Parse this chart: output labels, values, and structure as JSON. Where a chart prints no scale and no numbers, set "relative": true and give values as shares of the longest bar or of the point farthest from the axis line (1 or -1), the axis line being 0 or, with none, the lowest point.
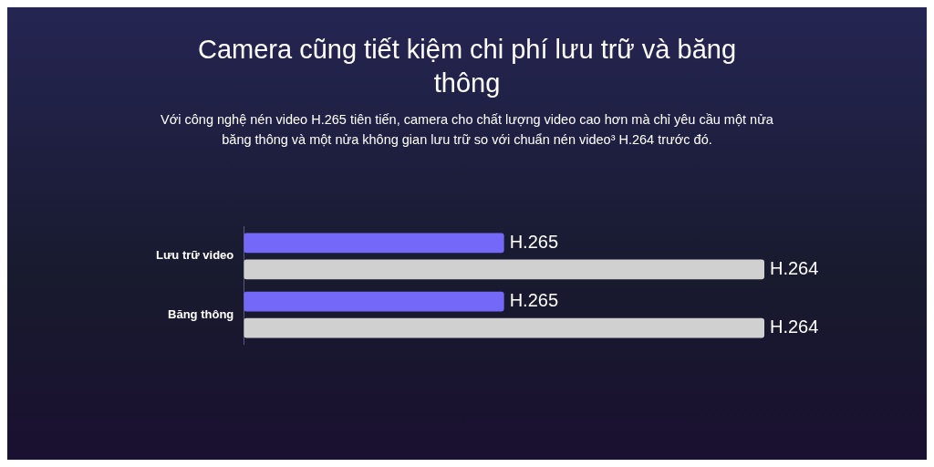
{
  "chart_data": {
    "type": "bar",
    "orientation": "horizontal",
    "relative": true,
    "title": "Camera cũng tiết kiệm chi phí lưu trữ và băng thông",
    "subtitle": "Với công nghệ nén video H.265 tiên tiến, camera cho chất lượng video cao hơn mà chỉ yêu cầu một nửa băng thông và một nửa không gian lưu trữ so với chuẩn nén video³ H.264 trước đó.",
    "categories": [
      "Lưu trữ video",
      "Băng thông"
    ],
    "series": [
      {
        "name": "H.265",
        "color": "#7468f8",
        "values": [
          0.5,
          0.5
        ]
      },
      {
        "name": "H.264",
        "color": "#d0d0d0",
        "values": [
          1,
          1
        ]
      }
    ],
    "legend": false
  }
}
